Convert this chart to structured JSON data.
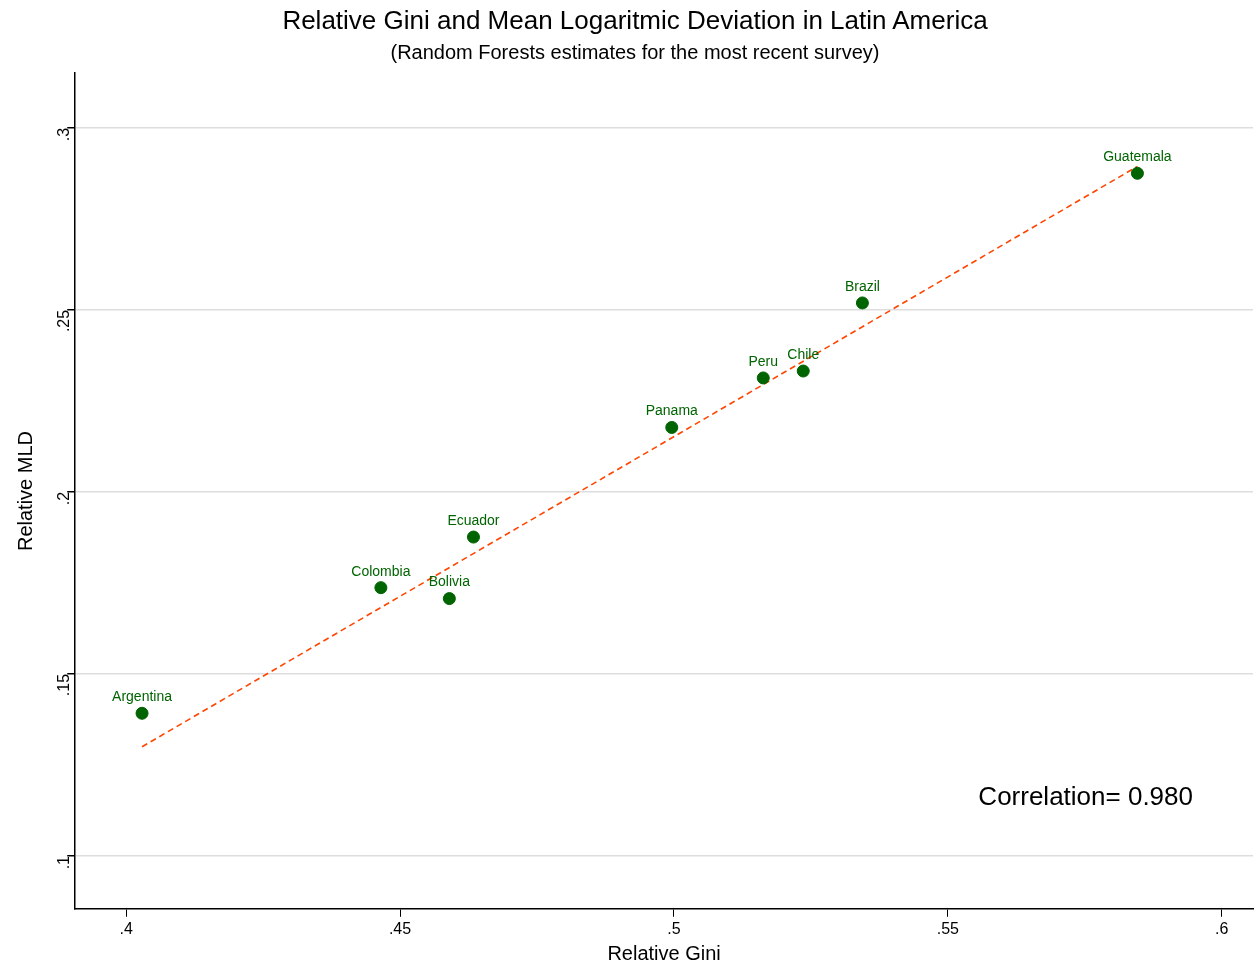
{
  "chart_data": {
    "type": "scatter",
    "title": "Relative Gini and Mean Logaritmic Deviation in Latin America",
    "subtitle": "(Random Forests estimates for the most recent survey)",
    "xlabel": "Relative Gini",
    "ylabel": "Relative MLD",
    "xlim": [
      0.3907,
      0.6057
    ],
    "ylim": [
      0.0855,
      0.315
    ],
    "xticks": [
      {
        "value": 0.4,
        "label": ".4"
      },
      {
        "value": 0.45,
        "label": ".45"
      },
      {
        "value": 0.5,
        "label": ".5"
      },
      {
        "value": 0.55,
        "label": ".55"
      },
      {
        "value": 0.6,
        "label": ".6"
      }
    ],
    "yticks": [
      {
        "value": 0.1,
        "label": ".1"
      },
      {
        "value": 0.15,
        "label": ".15"
      },
      {
        "value": 0.2,
        "label": ".2"
      },
      {
        "value": 0.25,
        "label": ".25"
      },
      {
        "value": 0.3,
        "label": ".3"
      }
    ],
    "grid": "y",
    "legend": false,
    "marker": "circle",
    "series": [
      {
        "color": "#006400",
        "x": [
          0.4029,
          0.4465,
          0.459,
          0.4634,
          0.4996,
          0.5163,
          0.5236,
          0.5344,
          0.5846
        ],
        "values": [
          0.1392,
          0.1737,
          0.1707,
          0.1876,
          0.2177,
          0.2313,
          0.2332,
          0.2519,
          0.2875
        ]
      },
      {
        "type": "line",
        "color": "#ff4500",
        "line_style": "dashed",
        "marker": "none",
        "x": [
          0.4029,
          0.5846
        ],
        "values": [
          0.13,
          0.2894
        ]
      }
    ],
    "annotations": [
      {
        "text": "Argentina",
        "x": 0.4029,
        "y": 0.1392
      },
      {
        "text": "Colombia",
        "x": 0.4465,
        "y": 0.1737
      },
      {
        "text": "Bolivia",
        "x": 0.459,
        "y": 0.1707
      },
      {
        "text": "Ecuador",
        "x": 0.4634,
        "y": 0.1876
      },
      {
        "text": "Panama",
        "x": 0.4996,
        "y": 0.2177
      },
      {
        "text": "Peru",
        "x": 0.5163,
        "y": 0.2313
      },
      {
        "text": "Chile",
        "x": 0.5236,
        "y": 0.2332
      },
      {
        "text": "Brazil",
        "x": 0.5344,
        "y": 0.2519
      },
      {
        "text": "Guatemala",
        "x": 0.5846,
        "y": 0.2875
      },
      "Correlation= 0.980"
    ]
  }
}
